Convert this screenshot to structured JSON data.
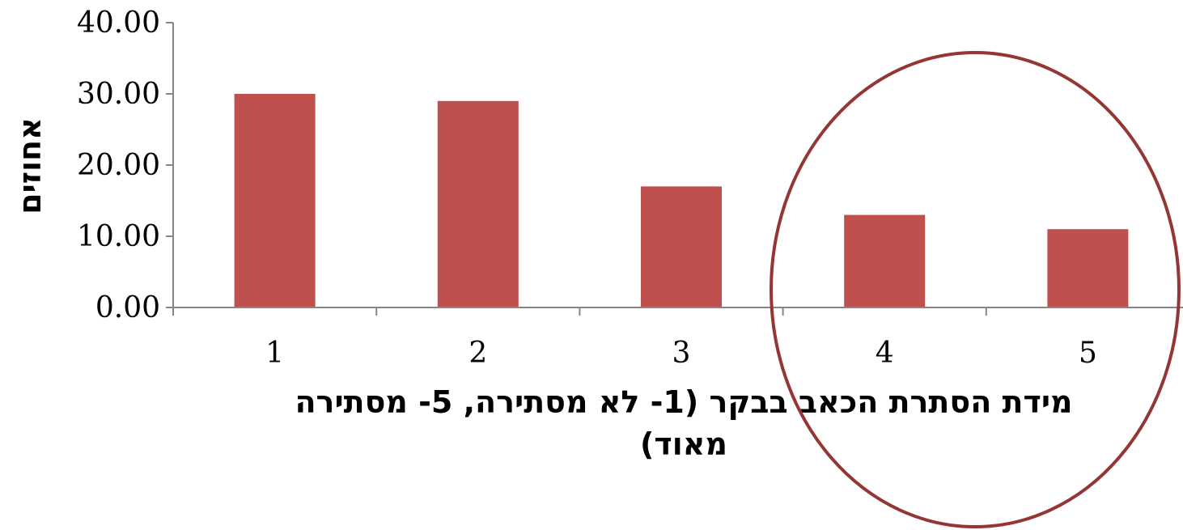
{
  "chart_data": {
    "type": "bar",
    "categories": [
      "1",
      "2",
      "3",
      "4",
      "5"
    ],
    "values": [
      30,
      29,
      17,
      13,
      11
    ],
    "ylabel": "אחוזים",
    "xlabel_lines": [
      "מידת הסתרת הכאב בבקר (1- לא מסתירה, 5- מסתירה",
      "מאוד)"
    ],
    "ylim": [
      0,
      40
    ],
    "y_ticks": [
      "0.00",
      "10.00",
      "20.00",
      "30.00",
      "40.00"
    ],
    "grid": false,
    "legend": "none",
    "bar_color": "#c0504d",
    "highlight": {
      "shape": "ellipse",
      "around_categories": [
        "4",
        "5"
      ],
      "color": "#943634"
    }
  }
}
